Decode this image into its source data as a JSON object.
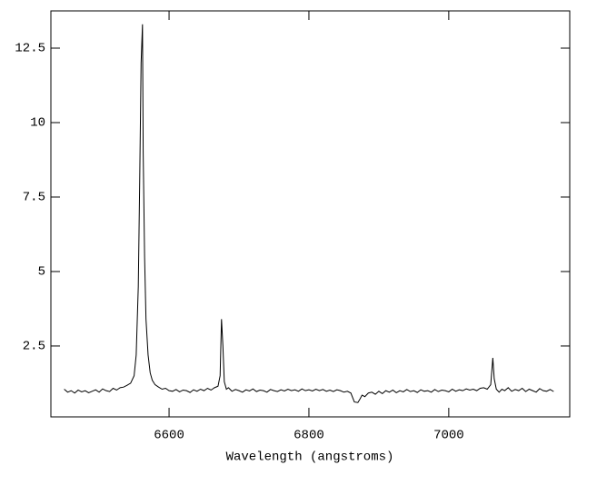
{
  "chart_data": {
    "type": "line",
    "xlabel": "Wavelength (angstroms)",
    "xlim": [
      6431,
      7173
    ],
    "ylim": [
      0.12,
      13.75
    ],
    "xticks": [
      6600,
      6800,
      7000
    ],
    "yticks": [
      2.5,
      5,
      7.5,
      10,
      12.5
    ],
    "color": "#000000",
    "x": [
      6450,
      6455,
      6460,
      6465,
      6470,
      6475,
      6480,
      6485,
      6490,
      6495,
      6500,
      6505,
      6510,
      6515,
      6520,
      6525,
      6530,
      6535,
      6540,
      6545,
      6550,
      6553,
      6556,
      6558,
      6560,
      6562,
      6563,
      6565,
      6567,
      6570,
      6573,
      6576,
      6580,
      6585,
      6590,
      6595,
      6600,
      6605,
      6610,
      6615,
      6620,
      6625,
      6630,
      6635,
      6640,
      6645,
      6650,
      6655,
      6660,
      6665,
      6670,
      6673,
      6675,
      6677,
      6679,
      6682,
      6685,
      6690,
      6695,
      6700,
      6705,
      6710,
      6715,
      6720,
      6725,
      6730,
      6735,
      6740,
      6745,
      6750,
      6755,
      6760,
      6765,
      6770,
      6775,
      6780,
      6785,
      6790,
      6795,
      6800,
      6805,
      6810,
      6815,
      6820,
      6825,
      6830,
      6835,
      6840,
      6845,
      6850,
      6855,
      6860,
      6865,
      6870,
      6873,
      6876,
      6880,
      6885,
      6890,
      6895,
      6900,
      6905,
      6910,
      6915,
      6920,
      6925,
      6930,
      6935,
      6940,
      6945,
      6950,
      6955,
      6960,
      6965,
      6970,
      6975,
      6980,
      6985,
      6990,
      6995,
      7000,
      7005,
      7010,
      7015,
      7020,
      7025,
      7030,
      7035,
      7040,
      7045,
      7050,
      7055,
      7060,
      7063,
      7065,
      7068,
      7072,
      7076,
      7080,
      7085,
      7090,
      7095,
      7100,
      7105,
      7110,
      7115,
      7120,
      7125,
      7130,
      7135,
      7140,
      7145,
      7150
    ],
    "y": [
      1.05,
      0.95,
      1.0,
      0.92,
      1.02,
      0.96,
      1.0,
      0.93,
      0.98,
      1.03,
      0.95,
      1.06,
      1.0,
      0.97,
      1.08,
      1.02,
      1.1,
      1.12,
      1.18,
      1.25,
      1.5,
      2.2,
      4.5,
      8.0,
      12.0,
      13.3,
      9.0,
      5.5,
      3.4,
      2.2,
      1.6,
      1.35,
      1.2,
      1.12,
      1.05,
      1.08,
      1.0,
      0.98,
      1.04,
      0.96,
      1.02,
      1.0,
      0.94,
      1.03,
      0.98,
      1.05,
      1.0,
      1.08,
      1.02,
      1.1,
      1.15,
      1.5,
      3.4,
      2.5,
      1.3,
      1.05,
      1.1,
      0.98,
      1.04,
      1.0,
      0.95,
      1.03,
      0.99,
      1.06,
      0.97,
      1.02,
      1.0,
      0.95,
      1.04,
      1.0,
      0.97,
      1.03,
      0.99,
      1.05,
      1.0,
      1.03,
      0.98,
      1.06,
      1.0,
      1.03,
      0.99,
      1.05,
      1.0,
      1.04,
      0.98,
      1.02,
      0.97,
      1.03,
      1.0,
      0.95,
      0.98,
      0.92,
      0.62,
      0.6,
      0.72,
      0.85,
      0.8,
      0.92,
      0.95,
      0.88,
      0.98,
      0.9,
      1.0,
      0.95,
      1.02,
      0.93,
      1.0,
      0.96,
      1.04,
      0.97,
      1.0,
      0.94,
      1.03,
      0.98,
      1.0,
      0.95,
      1.04,
      0.97,
      1.02,
      1.0,
      0.96,
      1.05,
      0.98,
      1.03,
      1.0,
      1.06,
      1.02,
      1.05,
      1.0,
      1.08,
      1.1,
      1.05,
      1.2,
      2.1,
      1.4,
      1.05,
      0.95,
      1.05,
      1.0,
      1.1,
      0.98,
      1.04,
      1.0,
      1.08,
      0.97,
      1.05,
      1.0,
      0.95,
      1.07,
      1.0,
      0.98,
      1.04,
      0.97
    ]
  }
}
